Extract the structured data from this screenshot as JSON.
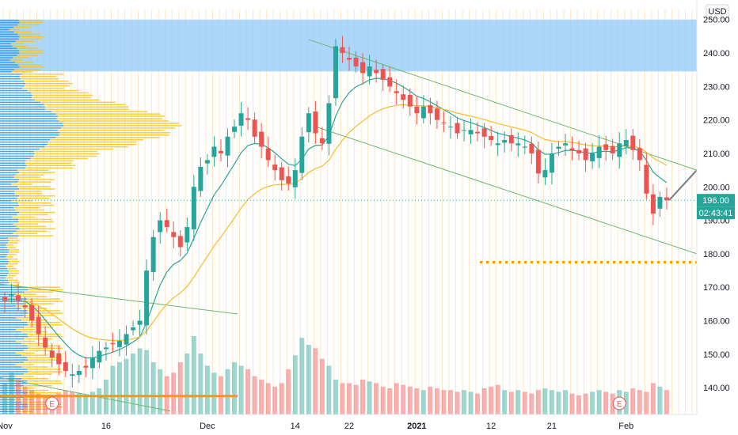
{
  "chart_data": {
    "type": "candlestick",
    "currency": "USD",
    "ylim": [
      132,
      253
    ],
    "y_ticks": [
      "250.00",
      "240.00",
      "230.00",
      "220.00",
      "210.00",
      "200.00",
      "190.00",
      "180.00",
      "170.00",
      "160.00",
      "150.00",
      "140.00"
    ],
    "x_ticks": [
      {
        "label": "Nov",
        "day": 0,
        "bold": false
      },
      {
        "label": "16",
        "day": 15,
        "bold": false
      },
      {
        "label": "Dec",
        "day": 30,
        "bold": false
      },
      {
        "label": "14",
        "day": 43,
        "bold": false
      },
      {
        "label": "22",
        "day": 51,
        "bold": false
      },
      {
        "label": "2021",
        "day": 61,
        "bold": true
      },
      {
        "label": "12",
        "day": 72,
        "bold": false
      },
      {
        "label": "21",
        "day": 81,
        "bold": false
      },
      {
        "label": "Feb",
        "day": 92,
        "bold": false
      }
    ],
    "last_price": "196.00",
    "countdown": "02:43:41",
    "resistance_zone": [
      234.5,
      250
    ],
    "support_level": 177.5,
    "colors": {
      "up": "#26a69a",
      "down": "#ef5350",
      "ema_fast": "#26a69a",
      "ema_slow": "#f9b92c",
      "zone": "#90caf9",
      "channel": "#66bb6a",
      "support": "#ff9800",
      "price_tag": "#26a69a",
      "countdown_tag": "#26a69a"
    },
    "closes": [
      166,
      168,
      166,
      164,
      160,
      156,
      152,
      149,
      147,
      145,
      144,
      145,
      146,
      149,
      151,
      152,
      153,
      154,
      156,
      158,
      160,
      175,
      185,
      190,
      188,
      185,
      182,
      188,
      200,
      206,
      208,
      212,
      210,
      215,
      218,
      222,
      220,
      215,
      212,
      208,
      205,
      202,
      201,
      205,
      215,
      222,
      216,
      213,
      225,
      242,
      240,
      238,
      236,
      234,
      236,
      234,
      232,
      230,
      228,
      226,
      224,
      222,
      224,
      222,
      220,
      219,
      218,
      216,
      217,
      217,
      216,
      215,
      214,
      213,
      214,
      213,
      213,
      212,
      210,
      204,
      205,
      210,
      212,
      213,
      211,
      210,
      208,
      210,
      212,
      211,
      210,
      213,
      214,
      211,
      208,
      198,
      192,
      197,
      196
    ],
    "volume_bars": [
      18,
      24,
      20,
      16,
      14,
      12,
      10,
      10,
      12,
      14,
      13,
      12,
      11,
      13,
      15,
      20,
      28,
      30,
      32,
      35,
      38,
      37,
      30,
      26,
      22,
      24,
      30,
      35,
      45,
      35,
      28,
      24,
      22,
      26,
      30,
      28,
      26,
      22,
      20,
      18,
      16,
      18,
      26,
      34,
      44,
      40,
      38,
      32,
      28,
      20,
      18,
      18,
      17,
      20,
      19,
      18,
      16,
      15,
      18,
      17,
      16,
      15,
      14,
      16,
      15,
      14,
      14,
      13,
      14,
      13,
      12,
      15,
      16,
      17,
      14,
      13,
      14,
      13,
      12,
      14,
      15,
      14,
      13,
      14,
      12,
      11,
      12,
      13,
      14,
      13,
      12,
      14,
      13,
      15,
      14,
      13,
      18,
      16,
      14
    ]
  },
  "labels": {
    "event_markers": [
      "E",
      "E"
    ]
  }
}
